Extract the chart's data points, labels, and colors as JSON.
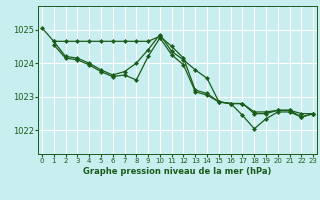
{
  "title": "Graphe pression niveau de la mer (hPa)",
  "bg_color": "#c8eef0",
  "grid_color": "#ffffff",
  "line_color": "#1a5c1a",
  "x_ticks": [
    0,
    1,
    2,
    3,
    4,
    5,
    6,
    7,
    8,
    9,
    10,
    11,
    12,
    13,
    14,
    15,
    16,
    17,
    18,
    19,
    20,
    21,
    22,
    23
  ],
  "y_ticks": [
    1022,
    1023,
    1024,
    1025
  ],
  "ylim": [
    1021.3,
    1025.7
  ],
  "xlim": [
    -0.3,
    23.3
  ],
  "line1_x": [
    0,
    1,
    2,
    3,
    4,
    5,
    6,
    7,
    8,
    9,
    10,
    11,
    12,
    13,
    14,
    15,
    16,
    17,
    18,
    19,
    20,
    21,
    22,
    23
  ],
  "line1_y": [
    1025.05,
    1024.65,
    1024.65,
    1024.65,
    1024.65,
    1024.65,
    1024.65,
    1024.65,
    1024.65,
    1024.65,
    1024.8,
    1024.5,
    1024.15,
    1023.2,
    1023.1,
    1022.85,
    1022.8,
    1022.8,
    1022.55,
    1022.55,
    1022.6,
    1022.6,
    1022.5,
    1022.5
  ],
  "line2_x": [
    1,
    2,
    3,
    4,
    5,
    6,
    7,
    8,
    9,
    10,
    11,
    12,
    13,
    14,
    15,
    16,
    17,
    18,
    19,
    20,
    21,
    22,
    23
  ],
  "line2_y": [
    1024.65,
    1024.2,
    1024.15,
    1024.0,
    1023.8,
    1023.65,
    1023.75,
    1024.0,
    1024.4,
    1024.85,
    1024.35,
    1024.1,
    1023.8,
    1023.55,
    1022.85,
    1022.8,
    1022.8,
    1022.5,
    1022.5,
    1022.6,
    1022.6,
    1022.4,
    1022.5
  ],
  "line3_x": [
    1,
    2,
    3,
    4,
    5,
    6,
    7,
    8,
    9,
    10,
    11,
    12,
    13,
    14,
    15,
    16,
    17,
    18,
    19,
    20,
    21,
    22,
    23
  ],
  "line3_y": [
    1024.55,
    1024.15,
    1024.1,
    1023.95,
    1023.75,
    1023.6,
    1023.65,
    1023.5,
    1024.2,
    1024.75,
    1024.25,
    1023.95,
    1023.15,
    1023.05,
    1022.85,
    1022.8,
    1022.45,
    1022.05,
    1022.35,
    1022.55,
    1022.55,
    1022.4,
    1022.5
  ]
}
